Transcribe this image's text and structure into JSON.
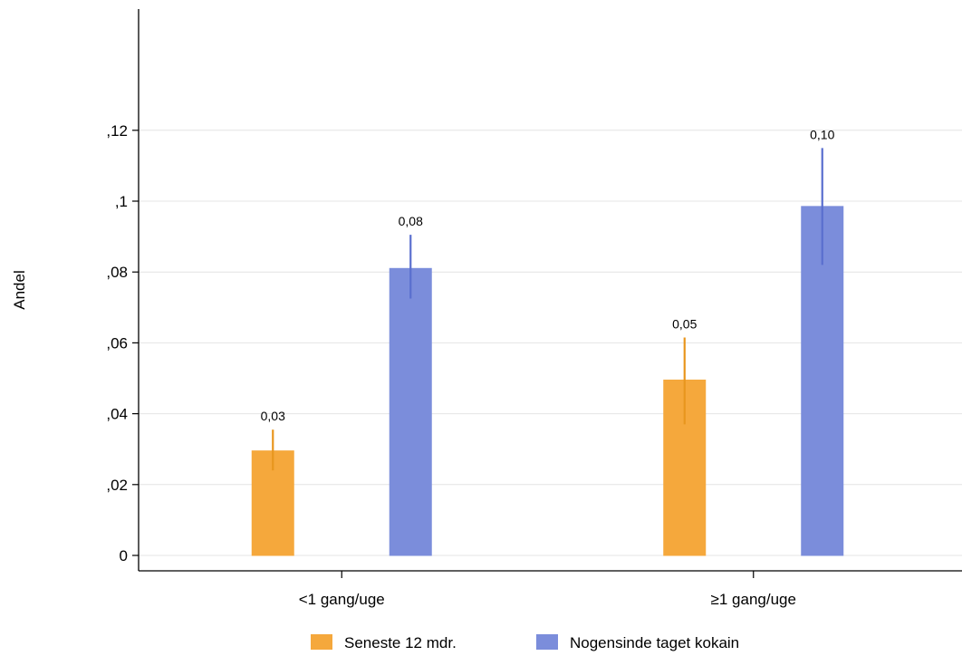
{
  "chart_data": {
    "type": "bar",
    "ylabel": "Andel",
    "ylim": [
      0,
      0.155
    ],
    "yticks": [
      0,
      0.02,
      0.04,
      0.06,
      0.08,
      0.1,
      0.12
    ],
    "ytick_labels": [
      "0",
      ",02",
      ",04",
      ",06",
      ",08",
      ",1",
      ",12"
    ],
    "grid": true,
    "legend_position": "bottom",
    "categories": [
      "<1 gang/uge",
      "≥1 gang/uge"
    ],
    "series": [
      {
        "name": "Seneste 12 mdr.",
        "color": "#F5A83C",
        "values": [
          0.0295,
          0.0495
        ],
        "ci_low": [
          0.024,
          0.037
        ],
        "ci_high": [
          0.0355,
          0.0615
        ],
        "labels": [
          "0,03",
          "0,05"
        ]
      },
      {
        "name": "Nogensinde taget kokain",
        "color": "#7B8DDB",
        "values": [
          0.081,
          0.0985
        ],
        "ci_low": [
          0.0725,
          0.082
        ],
        "ci_high": [
          0.0905,
          0.115
        ],
        "labels": [
          "0,08",
          "0,10"
        ]
      }
    ]
  }
}
